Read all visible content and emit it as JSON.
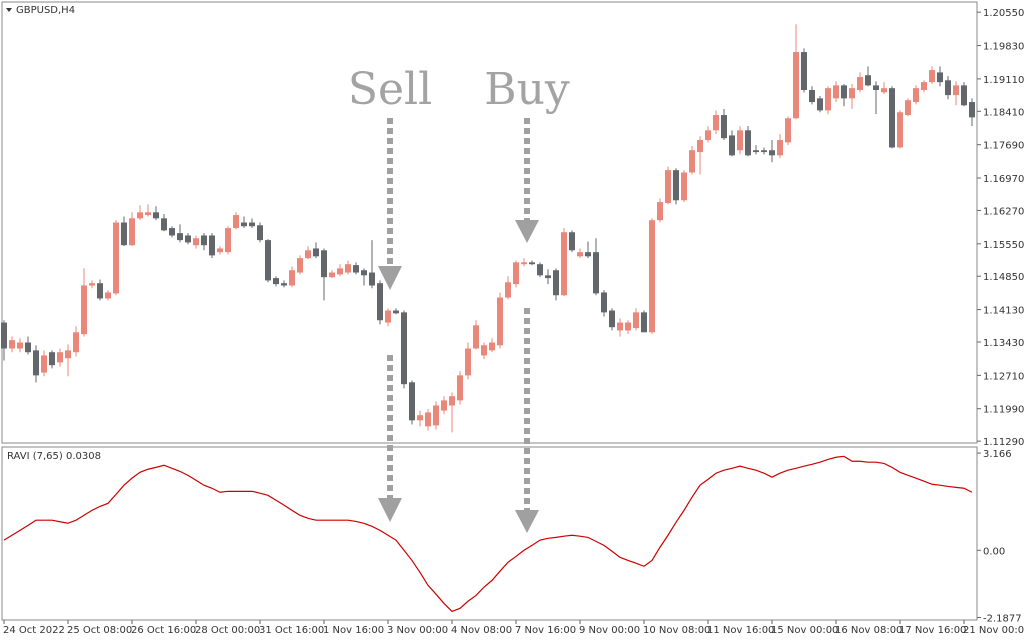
{
  "chart_data": [
    {
      "type": "candlestick",
      "title": "GBPUSD,H4",
      "annotations": [
        "Sell",
        "Buy"
      ],
      "up_color": "#e8877a",
      "down_color": "#63676c",
      "ylim": [
        1.1125,
        1.2077
      ],
      "yticks": [
        {
          "value": 1.2055,
          "label": "1.20550"
        },
        {
          "value": 1.1983,
          "label": "1.19830"
        },
        {
          "value": 1.1911,
          "label": "1.19110"
        },
        {
          "value": 1.1841,
          "label": "1.18410"
        },
        {
          "value": 1.1769,
          "label": "1.17690"
        },
        {
          "value": 1.1697,
          "label": "1.16970"
        },
        {
          "value": 1.1627,
          "label": "1.16270"
        },
        {
          "value": 1.1555,
          "label": "1.15550"
        },
        {
          "value": 1.1485,
          "label": "1.14850"
        },
        {
          "value": 1.1413,
          "label": "1.14130"
        },
        {
          "value": 1.1343,
          "label": "1.13430"
        },
        {
          "value": 1.1271,
          "label": "1.12710"
        },
        {
          "value": 1.1199,
          "label": "1.11990"
        },
        {
          "value": 1.1129,
          "label": "1.11290"
        }
      ],
      "categories": [
        "24 Oct 2022",
        null,
        null,
        null,
        null,
        null,
        null,
        null,
        "25 Oct 08:00",
        null,
        null,
        null,
        null,
        null,
        null,
        null,
        "26 Oct 16:00",
        null,
        null,
        null,
        null,
        null,
        null,
        null,
        "28 Oct 00:00",
        null,
        null,
        null,
        null,
        null,
        null,
        null,
        "31 Oct 16:00",
        null,
        null,
        null,
        null,
        null,
        null,
        null,
        "1 Nov 16:00",
        null,
        null,
        null,
        null,
        null,
        null,
        null,
        "3 Nov 00:00",
        null,
        null,
        null,
        null,
        null,
        null,
        null,
        "4 Nov 08:00",
        null,
        null,
        null,
        null,
        null,
        null,
        null,
        "7 Nov 16:00",
        null,
        null,
        null,
        null,
        null,
        null,
        null,
        "9 Nov 00:00",
        null,
        null,
        null,
        null,
        null,
        null,
        null,
        "10 Nov 08:00",
        null,
        null,
        null,
        null,
        null,
        null,
        null,
        "11 Nov 16:00",
        null,
        null,
        null,
        null,
        null,
        null,
        null,
        "15 Nov 00:00",
        null,
        null,
        null,
        null,
        null,
        null,
        null,
        "16 Nov 08:00",
        null,
        null,
        null,
        null,
        null,
        null,
        null,
        "17 Nov 16:00",
        null,
        null,
        null,
        null,
        null,
        null,
        null,
        "21 Nov 00:00",
        null
      ],
      "ohlc": [
        [
          1.1385,
          1.139,
          1.1303,
          1.1329
        ],
        [
          1.1329,
          1.1355,
          1.1321,
          1.1347
        ],
        [
          1.1329,
          1.1351,
          1.1321,
          1.1342
        ],
        [
          1.1342,
          1.1355,
          1.1316,
          1.1321
        ],
        [
          1.1325,
          1.1336,
          1.1256,
          1.1271
        ],
        [
          1.1277,
          1.1325,
          1.1269,
          1.1314
        ],
        [
          1.1321,
          1.1325,
          1.1286,
          1.1293
        ],
        [
          1.1299,
          1.1329,
          1.129,
          1.1321
        ],
        [
          1.1308,
          1.1338,
          1.1269,
          1.1325
        ],
        [
          1.1321,
          1.1377,
          1.1312,
          1.1364
        ],
        [
          1.136,
          1.1502,
          1.1355,
          1.1465
        ],
        [
          1.1465,
          1.1476,
          1.1459,
          1.147
        ],
        [
          1.147,
          1.1478,
          1.1433,
          1.1437
        ],
        [
          1.1437,
          1.1455,
          1.1433,
          1.145
        ],
        [
          1.1448,
          1.1606,
          1.1444,
          1.1601
        ],
        [
          1.1601,
          1.1614,
          1.155,
          1.1552
        ],
        [
          1.1552,
          1.1623,
          1.155,
          1.161
        ],
        [
          1.161,
          1.1638,
          1.1606,
          1.1623
        ],
        [
          1.1617,
          1.164,
          1.1614,
          1.1623
        ],
        [
          1.1623,
          1.1636,
          1.1606,
          1.161
        ],
        [
          1.161,
          1.1619,
          1.1582,
          1.1584
        ],
        [
          1.1589,
          1.1593,
          1.1569,
          1.1573
        ],
        [
          1.1578,
          1.1597,
          1.1558,
          1.1563
        ],
        [
          1.1573,
          1.1578,
          1.1554,
          1.1558
        ],
        [
          1.1552,
          1.1573,
          1.1545,
          1.1567
        ],
        [
          1.1573,
          1.1578,
          1.1541,
          1.1552
        ],
        [
          1.1573,
          1.1578,
          1.1524,
          1.153
        ],
        [
          1.1537,
          1.155,
          1.1532,
          1.1545
        ],
        [
          1.1537,
          1.1593,
          1.1532,
          1.1589
        ],
        [
          1.1589,
          1.1623,
          1.1586,
          1.1617
        ],
        [
          1.1601,
          1.1614,
          1.1589,
          1.1593
        ],
        [
          1.1601,
          1.161,
          1.1589,
          1.1593
        ],
        [
          1.1595,
          1.1601,
          1.1558,
          1.1563
        ],
        [
          1.1563,
          1.1565,
          1.1472,
          1.1476
        ],
        [
          1.1481,
          1.1485,
          1.1463,
          1.1468
        ],
        [
          1.147,
          1.1476,
          1.1461,
          1.1465
        ],
        [
          1.1465,
          1.1506,
          1.1461,
          1.1498
        ],
        [
          1.1493,
          1.153,
          1.1489,
          1.1524
        ],
        [
          1.1524,
          1.155,
          1.1522,
          1.1541
        ],
        [
          1.1545,
          1.1558,
          1.1524,
          1.1528
        ],
        [
          1.1541,
          1.1545,
          1.1433,
          1.1483
        ],
        [
          1.1483,
          1.1498,
          1.1481,
          1.1493
        ],
        [
          1.1489,
          1.1511,
          1.1485,
          1.1502
        ],
        [
          1.1493,
          1.1519,
          1.1489,
          1.1511
        ],
        [
          1.1509,
          1.1515,
          1.1489,
          1.1493
        ],
        [
          1.1498,
          1.1502,
          1.1465,
          1.1487
        ],
        [
          1.1493,
          1.1563,
          1.1459,
          1.1465
        ],
        [
          1.147,
          1.1476,
          1.1381,
          1.139
        ],
        [
          1.1385,
          1.1416,
          1.1377,
          1.1411
        ],
        [
          1.1411,
          1.1416,
          1.1403,
          1.1405
        ],
        [
          1.1407,
          1.1411,
          1.1243,
          1.1252
        ],
        [
          1.1256,
          1.126,
          1.1165,
          1.1174
        ],
        [
          1.1174,
          1.1195,
          1.1161,
          1.1185
        ],
        [
          1.1161,
          1.1198,
          1.1152,
          1.1191
        ],
        [
          1.1163,
          1.1215,
          1.1154,
          1.1206
        ],
        [
          1.1195,
          1.1226,
          1.1187,
          1.1217
        ],
        [
          1.1206,
          1.1234,
          1.1148,
          1.1226
        ],
        [
          1.1217,
          1.128,
          1.1208,
          1.1271
        ],
        [
          1.1271,
          1.1342,
          1.1262,
          1.1329
        ],
        [
          1.1329,
          1.139,
          1.1327,
          1.1379
        ],
        [
          1.1314,
          1.1342,
          1.1306,
          1.1336
        ],
        [
          1.1325,
          1.1351,
          1.1321,
          1.1342
        ],
        [
          1.1336,
          1.145,
          1.1329,
          1.1439
        ],
        [
          1.1439,
          1.1485,
          1.1435,
          1.1472
        ],
        [
          1.1468,
          1.1519,
          1.1461,
          1.1515
        ],
        [
          1.1511,
          1.1524,
          1.1506,
          1.1515
        ],
        [
          1.1515,
          1.1519,
          1.1509,
          1.1511
        ],
        [
          1.1511,
          1.1515,
          1.1483,
          1.1487
        ],
        [
          1.1487,
          1.15,
          1.1468,
          1.1481
        ],
        [
          1.1498,
          1.1502,
          1.1433,
          1.1444
        ],
        [
          1.1444,
          1.1589,
          1.1442,
          1.158
        ],
        [
          1.158,
          1.1584,
          1.1537,
          1.1541
        ],
        [
          1.1528,
          1.1545,
          1.1524,
          1.1537
        ],
        [
          1.1537,
          1.156,
          1.1524,
          1.1528
        ],
        [
          1.1537,
          1.1567,
          1.1444,
          1.1448
        ],
        [
          1.145,
          1.1455,
          1.1398,
          1.1407
        ],
        [
          1.1411,
          1.1416,
          1.1368,
          1.1375
        ],
        [
          1.1368,
          1.1394,
          1.1355,
          1.1385
        ],
        [
          1.1368,
          1.139,
          1.136,
          1.1385
        ],
        [
          1.1373,
          1.1416,
          1.1368,
          1.1407
        ],
        [
          1.1407,
          1.1411,
          1.1364,
          1.1364
        ],
        [
          1.1364,
          1.161,
          1.136,
          1.1606
        ],
        [
          1.1606,
          1.1653,
          1.1601,
          1.1645
        ],
        [
          1.1643,
          1.1722,
          1.164,
          1.1714
        ],
        [
          1.1714,
          1.1718,
          1.164,
          1.1649
        ],
        [
          1.1649,
          1.1714,
          1.1645,
          1.1709
        ],
        [
          1.1709,
          1.1766,
          1.1705,
          1.1757
        ],
        [
          1.1753,
          1.1787,
          1.1705,
          1.1779
        ],
        [
          1.1779,
          1.1809,
          1.1774,
          1.18
        ],
        [
          1.18,
          1.1843,
          1.1792,
          1.1833
        ],
        [
          1.1833,
          1.1846,
          1.1779,
          1.1783
        ],
        [
          1.1789,
          1.18,
          1.1744,
          1.1746
        ],
        [
          1.1757,
          1.1809,
          1.1748,
          1.18
        ],
        [
          1.18,
          1.1809,
          1.1744,
          1.1746
        ],
        [
          1.1757,
          1.1768,
          1.1748,
          1.1753
        ],
        [
          1.1757,
          1.1763,
          1.1748,
          1.1753
        ],
        [
          1.1757,
          1.1779,
          1.1731,
          1.1746
        ],
        [
          1.1746,
          1.1792,
          1.174,
          1.1779
        ],
        [
          1.1774,
          1.183,
          1.1768,
          1.1826
        ],
        [
          1.1826,
          1.2029,
          1.1824,
          1.1969
        ],
        [
          1.1969,
          1.1977,
          1.1882,
          1.1887
        ],
        [
          1.1887,
          1.1895,
          1.1856,
          1.1861
        ],
        [
          1.1869,
          1.1874,
          1.1839,
          1.1843
        ],
        [
          1.1843,
          1.1895,
          1.1835,
          1.1891
        ],
        [
          1.1869,
          1.1906,
          1.1861,
          1.1897
        ],
        [
          1.1897,
          1.19,
          1.1852,
          1.1869
        ],
        [
          1.1869,
          1.19,
          1.1846,
          1.1891
        ],
        [
          1.1887,
          1.1925,
          1.1882,
          1.1915
        ],
        [
          1.1919,
          1.1938,
          1.1895,
          1.1897
        ],
        [
          1.1897,
          1.1906,
          1.1835,
          1.1887
        ],
        [
          1.1882,
          1.1904,
          1.1878,
          1.1891
        ],
        [
          1.1891,
          1.1895,
          1.1761,
          1.1763
        ],
        [
          1.1763,
          1.1843,
          1.1761,
          1.1839
        ],
        [
          1.1833,
          1.1869,
          1.183,
          1.1865
        ],
        [
          1.1861,
          1.1897,
          1.1856,
          1.1891
        ],
        [
          1.1887,
          1.1908,
          1.1882,
          1.1904
        ],
        [
          1.1904,
          1.1938,
          1.19,
          1.193
        ],
        [
          1.1925,
          1.1938,
          1.1895,
          1.1904
        ],
        [
          1.1908,
          1.1917,
          1.1867,
          1.1876
        ],
        [
          1.1876,
          1.1906,
          1.1854,
          1.1897
        ],
        [
          1.1897,
          1.1904,
          1.1852,
          1.1854
        ],
        [
          1.1861,
          1.1869,
          1.1809,
          1.1828
        ]
      ]
    },
    {
      "type": "line",
      "title": "RAVI (7,65) 0.0308",
      "color": "#cc0000",
      "ylim": [
        -2.27,
        3.364
      ],
      "yticks": [
        3.166,
        {
          "value": 0,
          "label": "0.00"
        },
        -2.1877
      ],
      "values": [
        0.33,
        0.49,
        0.65,
        0.81,
        0.98,
        0.98,
        0.98,
        0.93,
        0.88,
        0.98,
        1.14,
        1.3,
        1.43,
        1.53,
        1.82,
        2.12,
        2.35,
        2.54,
        2.64,
        2.7,
        2.77,
        2.67,
        2.57,
        2.44,
        2.28,
        2.12,
        2.02,
        1.89,
        1.92,
        1.92,
        1.92,
        1.92,
        1.86,
        1.79,
        1.63,
        1.47,
        1.3,
        1.14,
        1.04,
        0.98,
        0.98,
        0.98,
        0.98,
        0.98,
        0.94,
        0.88,
        0.78,
        0.65,
        0.49,
        0.33,
        0,
        -0.33,
        -0.72,
        -1.14,
        -1.43,
        -1.73,
        -1.99,
        -1.89,
        -1.66,
        -1.47,
        -1.2,
        -0.98,
        -0.68,
        -0.39,
        -0.2,
        0,
        0.16,
        0.33,
        0.39,
        0.42,
        0.46,
        0.49,
        0.46,
        0.42,
        0.29,
        0.16,
        -0.03,
        -0.23,
        -0.33,
        -0.42,
        -0.52,
        -0.33,
        0.1,
        0.49,
        0.91,
        1.3,
        1.73,
        2.12,
        2.31,
        2.51,
        2.61,
        2.67,
        2.74,
        2.67,
        2.61,
        2.51,
        2.38,
        2.51,
        2.61,
        2.67,
        2.74,
        2.8,
        2.87,
        2.96,
        3.03,
        3.06,
        2.9,
        2.9,
        2.87,
        2.87,
        2.83,
        2.7,
        2.54,
        2.44,
        2.35,
        2.25,
        2.15,
        2.12,
        2.08,
        2.05,
        2.02,
        1.89
      ]
    }
  ]
}
